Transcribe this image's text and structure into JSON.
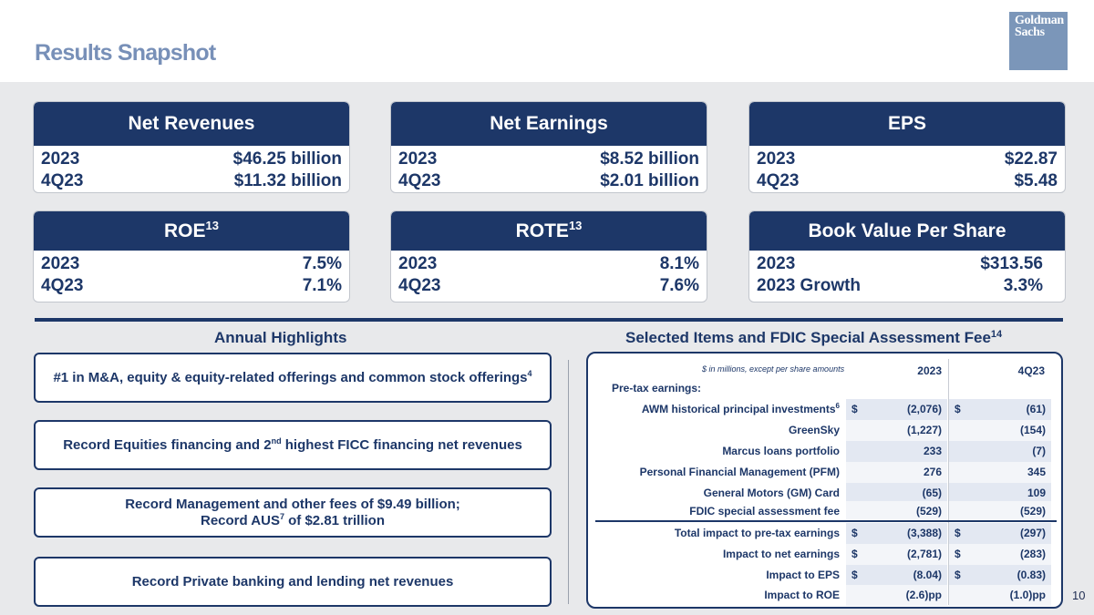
{
  "header": {
    "title": "Results Snapshot",
    "logo_line1": "Goldman",
    "logo_line2": "Sachs"
  },
  "cards": {
    "net_revenues": {
      "title": "Net Revenues",
      "r1_label": "2023",
      "r1_value": "$46.25 billion",
      "r2_label": "4Q23",
      "r2_value": "$11.32 billion"
    },
    "net_earnings": {
      "title": "Net Earnings",
      "r1_label": "2023",
      "r1_value": "$8.52 billion",
      "r2_label": "4Q23",
      "r2_value": "$2.01 billion"
    },
    "eps": {
      "title": "EPS",
      "r1_label": "2023",
      "r1_value": "$22.87",
      "r2_label": "4Q23",
      "r2_value": "$5.48"
    },
    "roe": {
      "title": "ROE",
      "sup": "13",
      "r1_label": "2023",
      "r1_value": "7.5%",
      "r2_label": "4Q23",
      "r2_value": "7.1%"
    },
    "rote": {
      "title": "ROTE",
      "sup": "13",
      "r1_label": "2023",
      "r1_value": "8.1%",
      "r2_label": "4Q23",
      "r2_value": "7.6%"
    },
    "bvps": {
      "title": "Book Value Per Share",
      "r1_label": "2023",
      "r1_value": "$313.56",
      "r2_label": "2023 Growth",
      "r2_value": "3.3%"
    }
  },
  "highlights": {
    "title": "Annual Highlights",
    "item1": "#1 in M&A, equity & equity-related offerings and common stock offerings",
    "item1_sup": "4",
    "item2_a": "Record Equities financing and 2",
    "item2_sup": "nd",
    "item2_b": " highest FICC financing net revenues",
    "item3_line1": "Record Management and other fees of $9.49 billion;",
    "item3_line2_a": "Record AUS",
    "item3_sup": "7",
    "item3_line2_b": " of $2.81 trillion",
    "item4": "Record Private banking and lending net revenues"
  },
  "selected": {
    "title": "Selected Items and FDIC Special Assessment Fee",
    "title_sup": "14",
    "note": "$ in millions, except per share amounts",
    "col1": "2023",
    "col2": "4Q23",
    "section_label": "Pre-tax earnings:",
    "rows": [
      {
        "label": "AWM historical principal investments",
        "sup": "6",
        "cur1": "$",
        "v1": "(2,076)",
        "cur2": "$",
        "v2": "(61)"
      },
      {
        "label": "GreenSky",
        "sup": "",
        "cur1": "",
        "v1": "(1,227)",
        "cur2": "",
        "v2": "(154)"
      },
      {
        "label": "Marcus loans portfolio",
        "sup": "",
        "cur1": "",
        "v1": "233",
        "cur2": "",
        "v2": "(7)"
      },
      {
        "label": "Personal Financial Management (PFM)",
        "sup": "",
        "cur1": "",
        "v1": "276",
        "cur2": "",
        "v2": "345"
      },
      {
        "label": "General Motors (GM) Card",
        "sup": "",
        "cur1": "",
        "v1": "(65)",
        "cur2": "",
        "v2": "109"
      },
      {
        "label": "FDIC special assessment fee",
        "sup": "",
        "cur1": "",
        "v1": "(529)",
        "cur2": "",
        "v2": "(529)"
      },
      {
        "label": "Total impact to pre-tax earnings",
        "sup": "",
        "cur1": "$",
        "v1": "(3,388)",
        "cur2": "$",
        "v2": "(297)"
      },
      {
        "label": "Impact to net earnings",
        "sup": "",
        "cur1": "$",
        "v1": "(2,781)",
        "cur2": "$",
        "v2": "(283)"
      },
      {
        "label": "Impact to EPS",
        "sup": "",
        "cur1": "$",
        "v1": "(8.04)",
        "cur2": "$",
        "v2": "(0.83)"
      },
      {
        "label": "Impact to ROE",
        "sup": "",
        "cur1": "",
        "v1": "(2.6)pp",
        "cur2": "",
        "v2": "(1.0)pp"
      }
    ]
  },
  "page_number": "10",
  "colors": {
    "navy": "#1d3768",
    "title_blue": "#7890b8",
    "logo_blue": "#7b96b9",
    "background": "#e8e9eb",
    "shade": "#e3e8f2"
  }
}
